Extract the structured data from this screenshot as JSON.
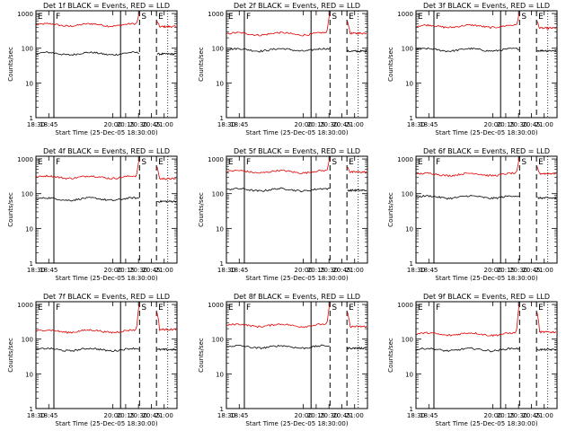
{
  "chart_data": {
    "type": "line",
    "x_start_label": "Start Time (25-Dec-05 18:30:00)",
    "x_ticks": [
      "18:30",
      "18:45",
      "20:00",
      "20:15",
      "20:30",
      "20:45",
      "21:00"
    ],
    "x_tick_hours": [
      18.5,
      18.75,
      20.0,
      20.25,
      20.5,
      20.75,
      21.0
    ],
    "xlim_hours": [
      18.5,
      21.25
    ],
    "ylabel": "Counts/sec",
    "y_scale": "log",
    "ylim": [
      1,
      1200
    ],
    "y_ticks": [
      "1",
      "10",
      "100",
      "1000"
    ],
    "series_colors": {
      "lld": "#e00000",
      "events": "#000000"
    },
    "markers": [
      {
        "label": "E",
        "hour": 18.5,
        "style": "solid"
      },
      {
        "label": "F",
        "hour": 18.85,
        "style": "solid"
      },
      {
        "label": "",
        "hour": 20.15,
        "style": "solid"
      },
      {
        "label": "S",
        "hour": 20.52,
        "style": "dashed"
      },
      {
        "label": "E",
        "hour": 20.85,
        "style": "dashed"
      },
      {
        "label": "",
        "hour": 21.07,
        "style": "dotted"
      }
    ],
    "panels": [
      {
        "title": "Det 1f BLACK = Events, RED = LLD",
        "red_level": 470,
        "black_level": 70,
        "red_peak": 1000,
        "black_post": 68,
        "red_post": 420
      },
      {
        "title": "Det 2f BLACK = Events, RED = LLD",
        "red_level": 260,
        "black_level": 90,
        "red_peak": 1000,
        "black_post": 82,
        "red_post": 270
      },
      {
        "title": "Det 3f BLACK = Events, RED = LLD",
        "red_level": 430,
        "black_level": 90,
        "red_peak": 1000,
        "black_post": 85,
        "red_post": 380
      },
      {
        "title": "Det 4f BLACK = Events, RED = LLD",
        "red_level": 300,
        "black_level": 70,
        "red_peak": 1000,
        "black_post": 60,
        "red_post": 270
      },
      {
        "title": "Det 5f BLACK = Events, RED = LLD",
        "red_level": 430,
        "black_level": 130,
        "red_peak": 1000,
        "black_post": 125,
        "red_post": 420
      },
      {
        "title": "Det 6f BLACK = Events, RED = LLD",
        "red_level": 360,
        "black_level": 80,
        "red_peak": 1000,
        "black_post": 75,
        "red_post": 380
      },
      {
        "title": "Det 7f BLACK = Events, RED = LLD",
        "red_level": 170,
        "black_level": 50,
        "red_peak": 1000,
        "black_post": 50,
        "red_post": 190
      },
      {
        "title": "Det 8f BLACK = Events, RED = LLD",
        "red_level": 250,
        "black_level": 60,
        "red_peak": 1000,
        "black_post": 55,
        "red_post": 230
      },
      {
        "title": "Det 9f BLACK = Events, RED = LLD",
        "red_level": 140,
        "black_level": 50,
        "red_peak": 1000,
        "black_post": 50,
        "red_post": 160
      }
    ]
  }
}
